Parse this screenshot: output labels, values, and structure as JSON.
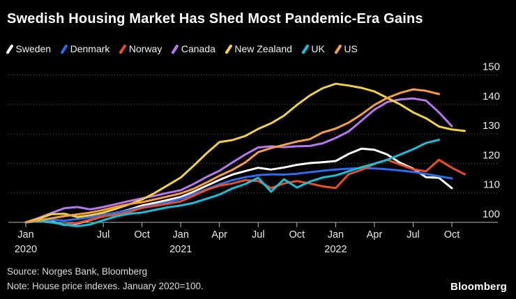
{
  "title": "Swedish Housing Market Has Shed Most Pandemic-Era Gains",
  "legend": [
    {
      "label": "Sweden",
      "color": "#ffffff"
    },
    {
      "label": "Denmark",
      "color": "#2a6cf4"
    },
    {
      "label": "Norway",
      "color": "#ee4e23"
    },
    {
      "label": "Canada",
      "color": "#b678f0"
    },
    {
      "label": "New Zealand",
      "color": "#f0d33e"
    },
    {
      "label": "UK",
      "color": "#12c2de"
    },
    {
      "label": "US",
      "color": "#f5a03c"
    }
  ],
  "chart_data": {
    "type": "line",
    "title": "Swedish Housing Market Has Shed Most Pandemic-Era Gains",
    "x_unit": "month",
    "x_start": "Jan 2020",
    "frequency": "monthly",
    "ylim": [
      97,
      152
    ],
    "yticks": [
      100,
      110,
      120,
      130,
      140,
      150
    ],
    "grid": "dotted-horizontal",
    "legend_position": "top",
    "x_ticks": [
      {
        "month": 0,
        "label": "Jan",
        "year": "2020"
      },
      {
        "month": 6,
        "label": "Jul"
      },
      {
        "month": 9,
        "label": "Oct"
      },
      {
        "month": 12,
        "label": "Jan",
        "year": "2021"
      },
      {
        "month": 15,
        "label": "Apr"
      },
      {
        "month": 18,
        "label": "Jul"
      },
      {
        "month": 21,
        "label": "Oct"
      },
      {
        "month": 24,
        "label": "Jan",
        "year": "2022"
      },
      {
        "month": 27,
        "label": "Apr"
      },
      {
        "month": 30,
        "label": "Jul"
      },
      {
        "month": 33,
        "label": "Oct"
      }
    ],
    "series": [
      {
        "name": "Sweden",
        "color": "#ffffff",
        "values": [
          100,
          100.6,
          100.3,
          99.1,
          99.6,
          100.8,
          102,
          103.2,
          104.3,
          105.7,
          106.6,
          107.6,
          108.6,
          110.4,
          112.4,
          114.4,
          116.2,
          117.4,
          118.5,
          117.9,
          118.6,
          119.5,
          120.1,
          120.4,
          120.8,
          123.2,
          125,
          124.6,
          123,
          120.2,
          118.2,
          115.3,
          115.1,
          111.6
        ]
      },
      {
        "name": "Denmark",
        "color": "#2a6cf4",
        "values": [
          100,
          100.4,
          100.9,
          100.6,
          101.1,
          101.7,
          102.6,
          103.3,
          104.1,
          105.1,
          105.9,
          106.9,
          108,
          109.6,
          111.2,
          112.9,
          114.3,
          115.3,
          116,
          116.3,
          116.2,
          116.5,
          117,
          117.5,
          117.9,
          118.2,
          118.4,
          118.3,
          118,
          117.6,
          117.1,
          116.4,
          115.6,
          114.9
        ]
      },
      {
        "name": "Norway",
        "color": "#ee4e23",
        "values": [
          100,
          100.4,
          99.9,
          99.3,
          99.8,
          100.9,
          102,
          102.6,
          103.5,
          104.9,
          105.6,
          106.3,
          107.1,
          109,
          111,
          112.4,
          113.2,
          114.3,
          114,
          111.6,
          113.2,
          114,
          113.2,
          112.2,
          111.6,
          116.3,
          117.8,
          119.8,
          121.2,
          119.6,
          118,
          117.3,
          121.2,
          118.5,
          116.3
        ]
      },
      {
        "name": "Canada",
        "color": "#b678f0",
        "values": [
          100,
          101.5,
          103.2,
          104.8,
          105.2,
          104.4,
          105.2,
          106.2,
          107.2,
          108.1,
          109,
          110,
          110.9,
          113,
          115.4,
          117.5,
          120.3,
          123,
          125.4,
          125.8,
          125.5,
          125.8,
          125.9,
          126.8,
          128.6,
          130.8,
          134.5,
          138.2,
          140.8,
          141.7,
          142,
          141.3,
          137.3,
          132.6
        ]
      },
      {
        "name": "New Zealand",
        "color": "#f0d33e",
        "values": [
          100,
          101.2,
          102.8,
          102.9,
          101.8,
          102.4,
          103.3,
          104.6,
          106.1,
          107.7,
          110,
          112.6,
          115.2,
          119.2,
          123.4,
          127.2,
          127.9,
          129.3,
          131.7,
          133.6,
          136.2,
          139.8,
          143,
          145.5,
          147,
          146.4,
          145.6,
          144.4,
          142.2,
          140,
          137.3,
          135.3,
          132.5,
          131.5,
          131
        ]
      },
      {
        "name": "UK",
        "color": "#12c2de",
        "values": [
          100,
          100.4,
          100.1,
          99.2,
          98.7,
          99.3,
          100.7,
          102,
          102.9,
          103.3,
          104.2,
          105.1,
          105.7,
          106.6,
          108,
          109.4,
          111.5,
          113,
          115.1,
          110.4,
          114.6,
          111.8,
          113.8,
          115.2,
          115.9,
          117.3,
          118.7,
          119.9,
          121.2,
          123,
          124.8,
          126.9,
          128
        ]
      },
      {
        "name": "US",
        "color": "#f5a03c",
        "values": [
          100,
          100.7,
          101.4,
          102.1,
          102.7,
          103.3,
          104.2,
          105.3,
          106.2,
          106.8,
          107.8,
          108.8,
          109.8,
          111.4,
          113.5,
          115.8,
          117.8,
          120.3,
          123.8,
          125.2,
          126.3,
          127.4,
          128.2,
          130.5,
          131.8,
          133.8,
          136.6,
          139.8,
          142.2,
          143.9,
          145.1,
          144.6,
          143.5
        ]
      }
    ]
  },
  "footer": {
    "source": "Source: Norges Bank, Bloomberg",
    "note": "Note: House price indexes. January 2020=100.",
    "logo": "Bloomberg"
  }
}
